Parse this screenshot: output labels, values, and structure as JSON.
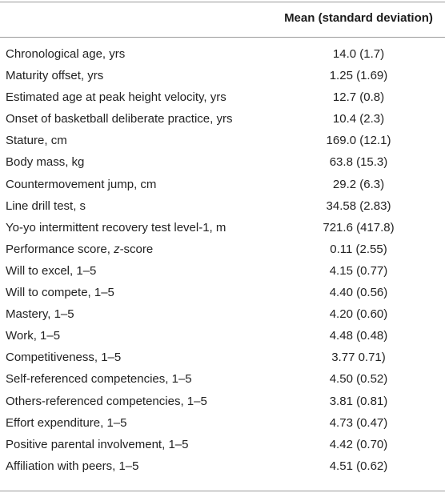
{
  "table": {
    "header": {
      "column_1": "",
      "column_2": "Mean (standard deviation)"
    },
    "rows": [
      {
        "label_parts": [
          "Chronological age, yrs"
        ],
        "value": "14.0 (1.7)"
      },
      {
        "label_parts": [
          "Maturity offset, yrs"
        ],
        "value": "1.25 (1.69)"
      },
      {
        "label_parts": [
          "Estimated age at peak height velocity, yrs"
        ],
        "value": "12.7 (0.8)"
      },
      {
        "label_parts": [
          "Onset of basketball deliberate practice, yrs"
        ],
        "value": "10.4 (2.3)"
      },
      {
        "label_parts": [
          "Stature, cm"
        ],
        "value": "169.0 (12.1)"
      },
      {
        "label_parts": [
          "Body mass, kg"
        ],
        "value": "63.8 (15.3)"
      },
      {
        "label_parts": [
          "Countermovement jump, cm"
        ],
        "value": "29.2 (6.3)"
      },
      {
        "label_parts": [
          "Line drill test, s"
        ],
        "value": "34.58 (2.83)"
      },
      {
        "label_parts": [
          "Yo-yo intermittent recovery test level-1, m"
        ],
        "value": "721.6 (417.8)"
      },
      {
        "label_parts": [
          "Performance score, ",
          "z",
          "-score"
        ],
        "value": "0.11 (2.55)"
      },
      {
        "label_parts": [
          "Will to excel, 1–5"
        ],
        "value": "4.15 (0.77)"
      },
      {
        "label_parts": [
          "Will to compete, 1–5"
        ],
        "value": "4.40 (0.56)"
      },
      {
        "label_parts": [
          "Mastery, 1–5"
        ],
        "value": "4.20 (0.60)"
      },
      {
        "label_parts": [
          "Work, 1–5"
        ],
        "value": "4.48 (0.48)"
      },
      {
        "label_parts": [
          "Competitiveness, 1–5"
        ],
        "value": "3.77 0.71)"
      },
      {
        "label_parts": [
          "Self-referenced competencies, 1–5"
        ],
        "value": "4.50 (0.52)"
      },
      {
        "label_parts": [
          "Others-referenced competencies, 1–5"
        ],
        "value": "3.81 (0.81)"
      },
      {
        "label_parts": [
          "Effort expenditure, 1–5"
        ],
        "value": "4.73 (0.47)"
      },
      {
        "label_parts": [
          "Positive parental involvement, 1–5"
        ],
        "value": "4.42 (0.70)"
      },
      {
        "label_parts": [
          "Affiliation with peers, 1–5"
        ],
        "value": "4.51 (0.62)"
      }
    ]
  }
}
